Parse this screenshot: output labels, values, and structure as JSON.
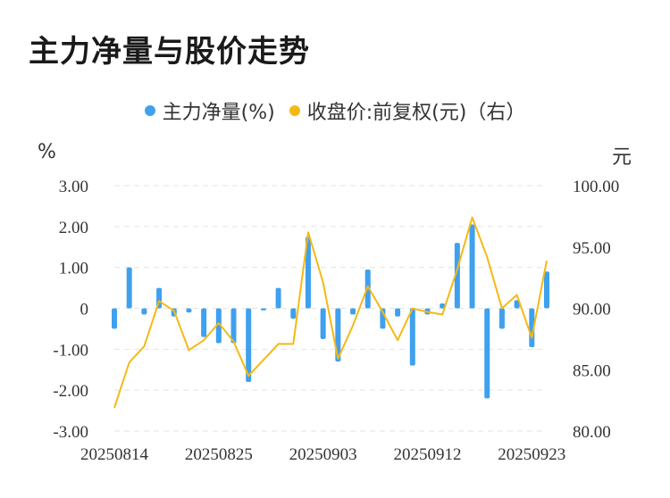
{
  "title": "主力净量与股价走势",
  "legend": {
    "series1": "主力净量(%)",
    "series2": "收盘价:前复权(元)（右）"
  },
  "units": {
    "left": "%",
    "right": "元"
  },
  "colors": {
    "bar": "#3fa0ee",
    "line": "#f5b914",
    "grid": "#e3e3e3"
  },
  "chart_data": {
    "type": "bar+line",
    "x_tick_labels": [
      "20250814",
      "20250825",
      "20250903",
      "20250912",
      "20250923"
    ],
    "x_tick_index": [
      0,
      7,
      14,
      21,
      28
    ],
    "left_axis": {
      "ticks": [
        "3.00",
        "2.00",
        "1.00",
        "0",
        "-1.00",
        "-2.00",
        "-3.00"
      ],
      "ylim": [
        -3,
        3
      ]
    },
    "right_axis": {
      "ticks": [
        "100.00",
        "95.00",
        "90.00",
        "85.00",
        "80.00"
      ],
      "ylim": [
        80,
        100
      ]
    },
    "series": [
      {
        "name": "主力净量(%)",
        "type": "bar",
        "values": [
          -0.5,
          1.0,
          -0.15,
          0.5,
          -0.2,
          -0.1,
          -0.7,
          -0.85,
          -0.85,
          -1.8,
          -0.05,
          0.5,
          -0.25,
          1.75,
          -0.75,
          -1.3,
          -0.15,
          0.95,
          -0.5,
          -0.2,
          -1.4,
          -0.15,
          0.12,
          1.6,
          2.05,
          -2.2,
          -0.5,
          0.2,
          -0.95,
          0.9
        ]
      },
      {
        "name": "收盘价:前复权(元)（右）",
        "type": "line",
        "values": [
          81.9,
          85.6,
          86.9,
          90.6,
          89.8,
          86.6,
          87.4,
          88.8,
          87.3,
          84.5,
          85.8,
          87.1,
          87.1,
          96.2,
          92.1,
          85.9,
          88.6,
          91.8,
          89.7,
          87.4,
          90.0,
          89.7,
          89.5,
          93.2,
          97.4,
          94.2,
          90.0,
          91.1,
          87.6,
          93.9
        ]
      }
    ],
    "grid": true,
    "legend_position": "top-center"
  }
}
